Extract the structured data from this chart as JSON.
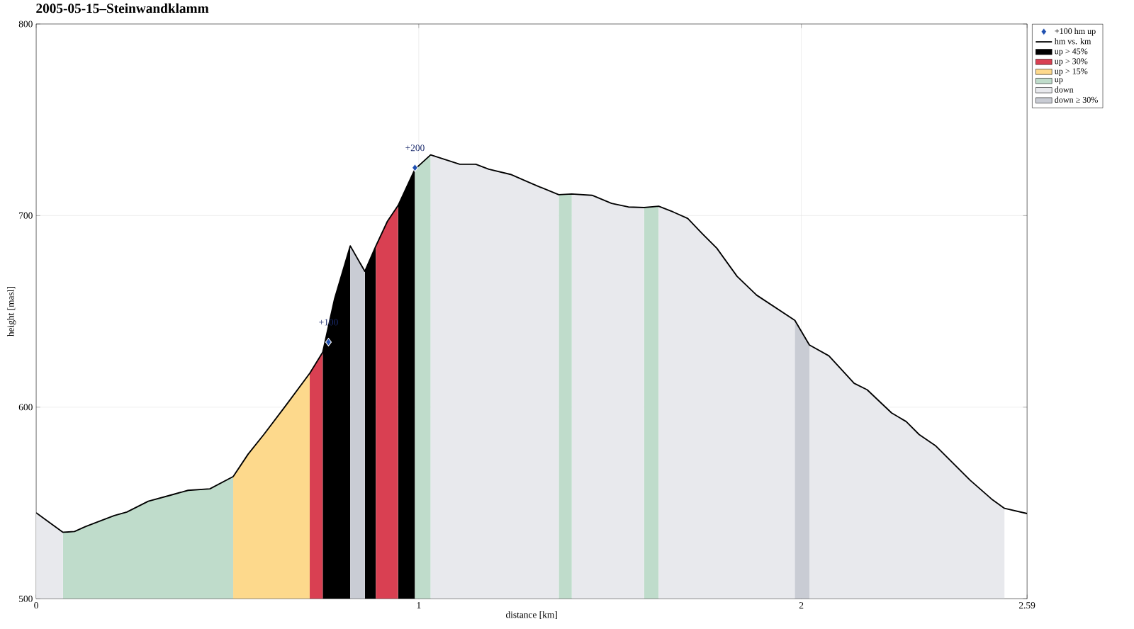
{
  "chart_data": {
    "type": "area",
    "title": "2005-05-15–Steinwandklamm",
    "xlabel": "distance [km]",
    "ylabel": "height [masl]",
    "xlim": [
      0,
      2.59
    ],
    "ylim": [
      500,
      800
    ],
    "xticks": [
      0,
      1,
      2,
      2.59
    ],
    "yticks": [
      500,
      600,
      700,
      800
    ],
    "grid": true,
    "legend": "top right",
    "annotations": [
      {
        "text": "+100",
        "x": 0.764,
        "y": 634
      },
      {
        "text": "+200",
        "x": 0.99,
        "y": 725
      }
    ],
    "series": [
      {
        "name": "+100 hm up",
        "type": "scatter",
        "marker": "diamond",
        "color": "#1f4fb0",
        "x": [
          0.764,
          0.99
        ],
        "values": [
          634,
          725
        ]
      },
      {
        "name": "hm vs. km",
        "type": "line",
        "color": "#000000",
        "x": [
          0,
          0.028,
          0.07,
          0.1,
          0.129,
          0.17,
          0.204,
          0.237,
          0.293,
          0.35,
          0.397,
          0.454,
          0.515,
          0.554,
          0.596,
          0.653,
          0.715,
          0.749,
          0.78,
          0.821,
          0.859,
          0.888,
          0.918,
          0.946,
          0.99,
          1.031,
          1.107,
          1.149,
          1.183,
          1.24,
          1.306,
          1.366,
          1.4,
          1.453,
          1.504,
          1.548,
          1.589,
          1.627,
          1.665,
          1.703,
          1.741,
          1.779,
          1.832,
          1.883,
          1.983,
          2.021,
          2.072,
          2.138,
          2.172,
          2.236,
          2.274,
          2.308,
          2.35,
          2.441,
          2.497,
          2.531,
          2.59
        ],
        "values": [
          544.9,
          540.8,
          534.7,
          535.1,
          537.7,
          540.8,
          543.4,
          545.3,
          550.9,
          554.0,
          556.6,
          557.4,
          563.8,
          575.5,
          586.0,
          601.0,
          617.7,
          628.7,
          656.6,
          684.2,
          670.9,
          684.2,
          697.0,
          705.3,
          724.2,
          731.7,
          726.8,
          726.8,
          724.2,
          721.5,
          715.8,
          710.9,
          711.3,
          710.6,
          706.4,
          704.5,
          704.2,
          704.9,
          701.9,
          698.5,
          690.6,
          683.0,
          668.3,
          658.5,
          645.3,
          632.5,
          626.8,
          612.5,
          609.1,
          597.0,
          592.5,
          585.7,
          580.0,
          561.9,
          552.1,
          547.2,
          544.5
        ]
      },
      {
        "name": "up > 45%",
        "color": "#000000",
        "x": [
          0.749,
          0.78,
          0.821,
          null,
          0.859,
          0.888,
          null,
          0.946,
          0.99
        ],
        "values": [
          628.7,
          656.6,
          684.2,
          null,
          670.9,
          684.2,
          null,
          705.3,
          724.2
        ]
      },
      {
        "name": "up > 30%",
        "color": "#d94052",
        "x": [
          0.715,
          0.749,
          null,
          0.888,
          0.918,
          0.946
        ],
        "values": [
          617.7,
          628.7,
          null,
          684.2,
          697.0,
          705.3
        ]
      },
      {
        "name": "up > 15%",
        "color": "#fdd98c",
        "x": [
          0.515,
          0.554,
          0.596,
          0.653,
          0.715
        ],
        "values": [
          563.8,
          575.5,
          586.0,
          601.0,
          617.7
        ]
      },
      {
        "name": "up",
        "color": "#bfdccb",
        "x": [
          0.07,
          0.1,
          0.129,
          0.17,
          0.204,
          0.237,
          0.293,
          0.35,
          0.397,
          0.454,
          0.515,
          null,
          0.99,
          1.031,
          null,
          1.366,
          1.4,
          null,
          1.589,
          1.627
        ],
        "values": [
          534.7,
          535.1,
          537.7,
          540.8,
          543.4,
          545.3,
          550.9,
          554.0,
          556.6,
          557.4,
          563.8,
          null,
          724.2,
          731.7,
          null,
          710.9,
          711.3,
          null,
          704.2,
          704.9
        ]
      },
      {
        "name": "down",
        "color": "#e8e9ed",
        "x": [
          0,
          0.028,
          0.07,
          null,
          1.031,
          1.107,
          1.149,
          1.183,
          1.24,
          1.306,
          1.366,
          null,
          1.4,
          1.453,
          1.504,
          1.548,
          1.589,
          null,
          1.627,
          1.665,
          1.703,
          1.741,
          1.779,
          1.832,
          1.883,
          1.983,
          null,
          2.021,
          2.072,
          2.138,
          2.172,
          2.236,
          2.274,
          2.308,
          2.35,
          2.441,
          2.497,
          2.531
        ],
        "values": [
          544.9,
          540.8,
          534.7,
          null,
          731.7,
          726.8,
          726.8,
          724.2,
          721.5,
          715.8,
          710.9,
          null,
          711.3,
          710.6,
          706.4,
          704.5,
          704.2,
          null,
          704.9,
          701.9,
          698.5,
          690.6,
          683.0,
          668.3,
          658.5,
          645.3,
          null,
          632.5,
          626.8,
          612.5,
          609.1,
          597.0,
          592.5,
          585.7,
          580.0,
          561.9,
          552.1,
          547.2
        ]
      },
      {
        "name": "down ≥ 30%",
        "color": "#c9ccd4",
        "x": [
          0.821,
          0.859,
          null,
          1.983,
          2.021
        ],
        "values": [
          684.2,
          670.9,
          null,
          645.3,
          632.5
        ]
      }
    ]
  }
}
